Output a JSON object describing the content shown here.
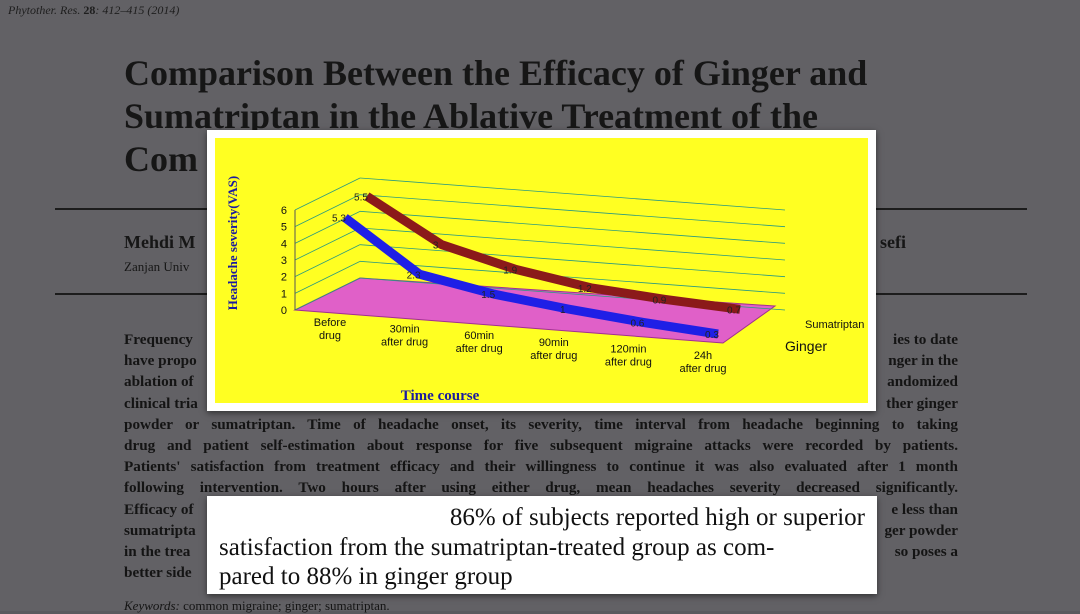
{
  "journal": {
    "name": "Phytother. Res.",
    "volume": "28",
    "pages": ": 412–415 (2014)"
  },
  "title": [
    "Comparison Between the Efficacy of Ginger and",
    "Sumatriptan in the Ablative Treatment of the",
    "Com"
  ],
  "authors": {
    "left": "Mehdi M",
    "right": "sefi"
  },
  "affiliation": "Zanjan Univ",
  "abstract_lines": [
    {
      "left": "Frequency",
      "right": "ies to date"
    },
    {
      "left": "have propo",
      "right": "nger in the"
    },
    {
      "left": "ablation of",
      "right": "andomized"
    },
    {
      "left": "clinical tria",
      "right": "ther ginger"
    },
    {
      "full": "powder or sumatriptan. Time of headache onset, its severity, time interval from headache beginning to taking"
    },
    {
      "full": "drug and patient self-estimation about response for five subsequent migraine attacks were recorded by patients."
    },
    {
      "full": "Patients' satisfaction from treatment efficacy and their willingness to continue it was also evaluated after 1 month"
    },
    {
      "full": "following intervention. Two hours after using either drug, mean headaches severity decreased significantly."
    },
    {
      "left": "Efficacy of",
      "right": "e less than"
    },
    {
      "left": "sumatripta",
      "right": "ger powder"
    },
    {
      "left": "in the trea",
      "right": "so poses a"
    },
    {
      "left": "better side",
      "right": ""
    }
  ],
  "keywords": {
    "label": "Keywords:",
    "text": "common migraine; ginger; sumatriptan."
  },
  "quote": {
    "line1": "86% of subjects reported high or superior",
    "line2": "satisfaction from the sumatriptan-treated group as com-",
    "line3": "pared to 88% in ginger group"
  },
  "chart_data": {
    "type": "line",
    "ylabel": "Headache severity(VAS)",
    "xlabel": "Time course",
    "categories": [
      "Before drug",
      "30min after drug",
      "60min after drug",
      "90min after drug",
      "120min after drug",
      "24h after drug"
    ],
    "ylim": [
      0,
      6
    ],
    "yticks": [
      "0",
      "1",
      "2",
      "3",
      "4",
      "5",
      "6"
    ],
    "series": [
      {
        "name": "Sumatriptan",
        "values": [
          5.5,
          3,
          1.9,
          1.2,
          0.9,
          0.7
        ],
        "labels": [
          "5.5",
          "3",
          "1.9",
          "1.2",
          "0.9",
          "0.7"
        ],
        "color": "#8b1a1a"
      },
      {
        "name": "Ginger",
        "values": [
          5.3,
          2.3,
          1.5,
          1,
          0.6,
          0.3
        ],
        "labels": [
          "5.3",
          "2.3",
          "1.5",
          "1",
          "0.6",
          "0.3"
        ],
        "color": "#1f1fe6"
      }
    ],
    "colors": {
      "background": "#ffff22",
      "floor": "#e060c8",
      "grid": "#2a9a80"
    }
  }
}
